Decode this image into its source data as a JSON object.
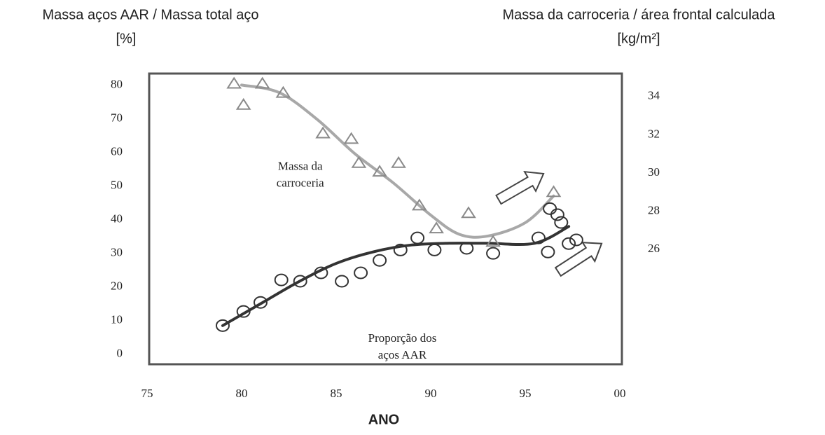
{
  "chart_data": {
    "type": "scatter",
    "y_label": [
      "Massa aços AAR / Massa total aço",
      "[%]"
    ],
    "y2_label": [
      "Massa da carroceria / área frontal calculada",
      "[kg/m²]"
    ],
    "x_label": "ANO",
    "annotations": [
      {
        "lines": [
          "Massa da",
          "carroceria"
        ],
        "x": 83.1,
        "y2": 30.3
      },
      {
        "lines": [
          "Proporção dos",
          "aços AAR"
        ],
        "x": 88.5,
        "y": 4.5
      }
    ],
    "xlim": [
      75,
      100
    ],
    "xticks": [
      75,
      80,
      85,
      90,
      95,
      {
        "value": 100,
        "label": "00"
      }
    ],
    "ylim": [
      -3,
      83.5
    ],
    "yticks": [
      0,
      10,
      20,
      30,
      40,
      50,
      60,
      70,
      80
    ],
    "y2lim": [
      20,
      35.2
    ],
    "y2ticks": [
      26,
      28,
      30,
      32,
      34
    ],
    "series": [
      {
        "marker": "circle",
        "color": "#333333",
        "x": [
          79.0,
          80.1,
          81.0,
          82.1,
          83.1,
          84.2,
          85.3,
          86.3,
          87.3,
          88.4,
          89.3,
          90.2,
          91.9,
          93.3,
          95.7,
          96.2,
          96.3,
          96.7,
          96.9,
          97.3,
          97.7
        ],
        "values": [
          8.5,
          12.7,
          15.4,
          22.1,
          21.7,
          24.2,
          21.7,
          24.2,
          27.9,
          31.0,
          34.6,
          31.0,
          31.5,
          30.0,
          34.6,
          30.4,
          43.3,
          41.5,
          39.2,
          32.9,
          34.0
        ]
      },
      {
        "marker": "triangle",
        "color": "#8a8a8a",
        "axis": "y2",
        "x": [
          79.6,
          80.1,
          81.1,
          82.2,
          84.3,
          85.8,
          86.2,
          87.3,
          88.3,
          89.4,
          90.3,
          92.0,
          93.3,
          96.5
        ],
        "values": [
          34.67,
          33.56,
          34.67,
          34.19,
          32.07,
          31.78,
          30.52,
          30.07,
          30.52,
          28.3,
          27.1,
          27.9,
          26.4,
          29.0
        ]
      }
    ],
    "curves": [
      {
        "color": "#333333",
        "x": [
          79,
          81,
          83,
          85,
          87,
          89,
          91,
          93,
          95.5,
          97.3
        ],
        "values": [
          8.5,
          15,
          21.5,
          27,
          30.5,
          32.5,
          33,
          33,
          33,
          38
        ]
      },
      {
        "color": "#a8a8a8",
        "axis": "y2",
        "x": [
          80,
          82,
          84,
          86,
          88,
          90,
          91.5,
          93,
          95,
          96.5
        ],
        "values": [
          34.6,
          34.2,
          32.8,
          31.0,
          29.5,
          27.8,
          26.8,
          26.7,
          27.4,
          28.8
        ]
      }
    ]
  }
}
